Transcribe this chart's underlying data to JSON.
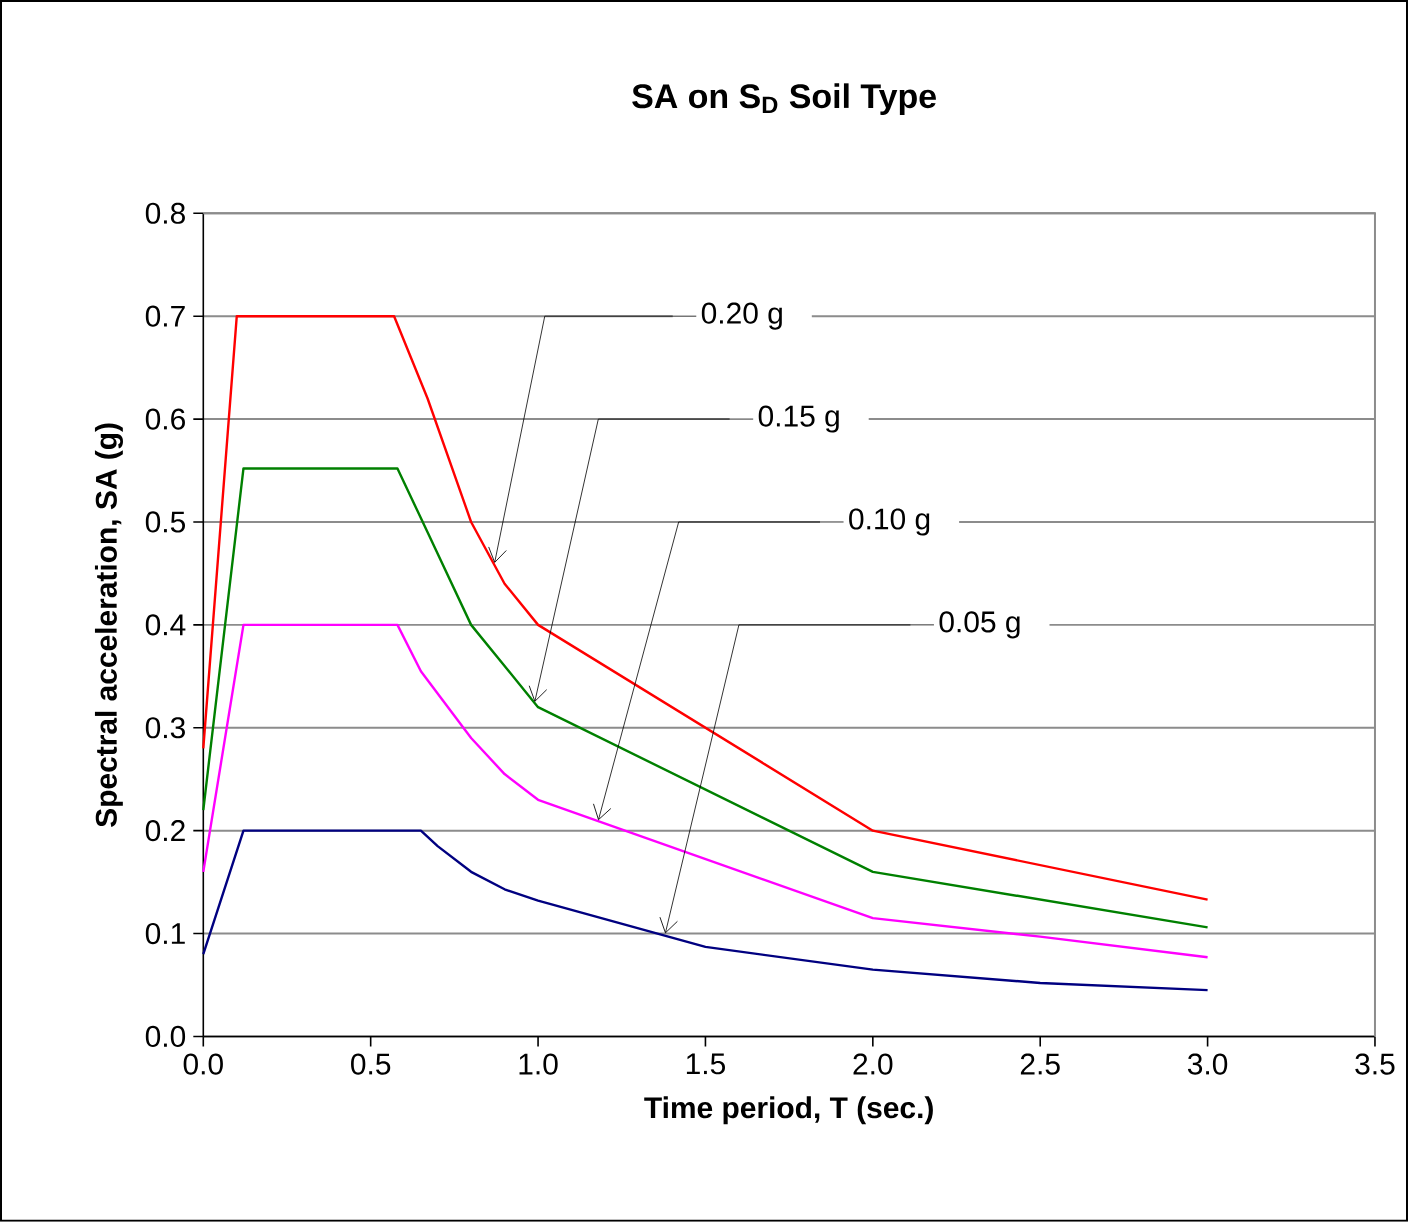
{
  "chart_data": {
    "type": "line",
    "title": "SA on S$_{D}$ Soil Type",
    "xlabel": "Time period, T (sec.)",
    "ylabel": "Spectral acceleration, SA (g)",
    "xlim": [
      0,
      3.5
    ],
    "ylim": [
      0,
      0.8
    ],
    "xticks": [
      {
        "value": 0,
        "label": "0.0"
      },
      0.5,
      {
        "value": 1,
        "label": "1.0"
      },
      1.5,
      {
        "value": 2,
        "label": "2.0"
      },
      2.5,
      {
        "value": 3,
        "label": "3.0"
      },
      3.5
    ],
    "yticks": [
      {
        "value": 0,
        "label": "0.0"
      },
      0.1,
      0.2,
      0.3,
      0.4,
      0.5,
      0.6,
      0.7,
      0.8
    ],
    "grid": "y",
    "legend": false,
    "marker": "none",
    "line_style": "solid",
    "annotations": [
      {
        "text": "0.20 g",
        "x": 0.87,
        "y": 0.46
      },
      {
        "text": "0.15 g",
        "x": 0.99,
        "y": 0.325
      },
      {
        "text": "0.10 g",
        "x": 1.18,
        "y": 0.21
      },
      {
        "text": "0.05 g",
        "x": 1.38,
        "y": 0.1
      }
    ],
    "series": [
      {
        "color": "#ff0000",
        "x": [
          0,
          0.1,
          0.57,
          0.67,
          0.8,
          0.9,
          1.0,
          2.0,
          3.0
        ],
        "values": [
          0.28,
          0.7,
          0.7,
          0.62,
          0.5,
          0.44,
          0.4,
          0.2,
          0.133
        ]
      },
      {
        "color": "#008000",
        "x": [
          0,
          0.12,
          0.58,
          0.67,
          0.8,
          1.0,
          2.0,
          3.0
        ],
        "values": [
          0.22,
          0.552,
          0.552,
          0.49,
          0.4,
          0.32,
          0.16,
          0.106
        ]
      },
      {
        "color": "#ff00ff",
        "x": [
          0,
          0.12,
          0.58,
          0.65,
          0.8,
          0.9,
          1.0,
          2.0,
          2.5,
          3.0
        ],
        "values": [
          0.16,
          0.4,
          0.4,
          0.355,
          0.29,
          0.255,
          0.23,
          0.115,
          0.097,
          0.077
        ]
      },
      {
        "color": "#000080",
        "x": [
          0,
          0.12,
          0.65,
          0.7,
          0.8,
          0.9,
          1.0,
          1.5,
          2.0,
          2.5,
          3.0
        ],
        "values": [
          0.08,
          0.2,
          0.2,
          0.185,
          0.16,
          0.143,
          0.132,
          0.087,
          0.065,
          0.052,
          0.045
        ]
      }
    ]
  }
}
